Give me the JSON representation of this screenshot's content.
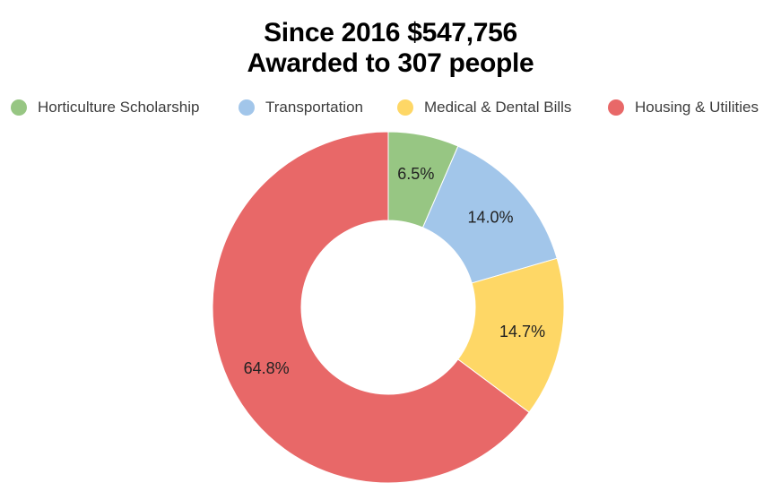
{
  "chart_data": {
    "type": "pie",
    "title_lines": [
      "Since 2016 $547,756",
      "Awarded to 307 people"
    ],
    "legend_position": "top",
    "donut": true,
    "slices": [
      {
        "name": "Horticulture Scholarship",
        "value": 6.5,
        "label": "6.5%",
        "color": "#97c683"
      },
      {
        "name": "Transportation",
        "value": 14.0,
        "label": "14.0%",
        "color": "#a2c6ea"
      },
      {
        "name": "Medical & Dental Bills",
        "value": 14.7,
        "label": "14.7%",
        "color": "#fed766"
      },
      {
        "name": "Housing & Utilities",
        "value": 64.8,
        "label": "64.8%",
        "color": "#e86868"
      }
    ]
  }
}
